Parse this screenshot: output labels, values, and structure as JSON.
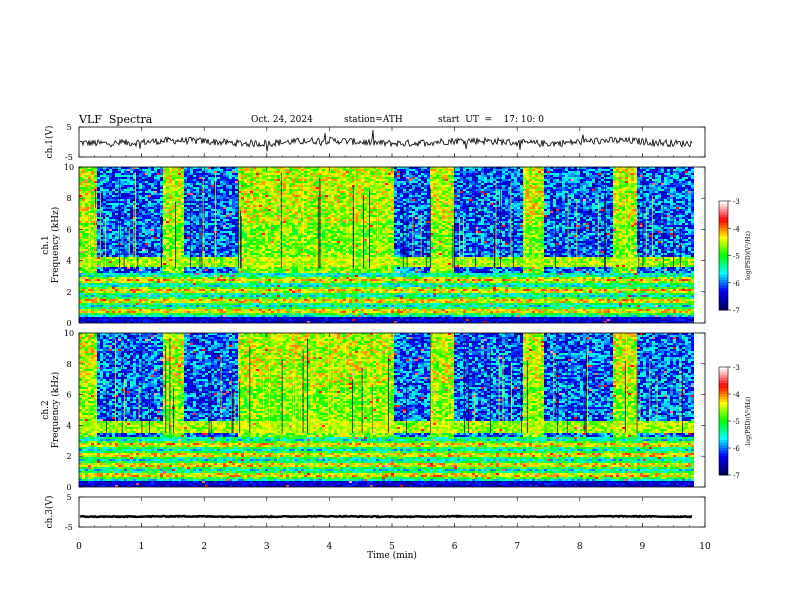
{
  "header": {
    "title": "VLF  Spectra",
    "date": "Oct. 24, 2024",
    "station": "station=ATH",
    "start": "start  UT  =    17: 10: 0"
  },
  "chart_data": [
    {
      "type": "line",
      "panel": "ch1-waveform",
      "ylabel": "ch.1(V)",
      "yticks": [
        "5",
        "-5"
      ],
      "ylim": [
        -5,
        5
      ],
      "xlim": [
        0,
        10
      ],
      "series": [
        {
          "mean": 0.0,
          "noise_amplitude": 1.2,
          "spikes": true
        }
      ]
    },
    {
      "type": "heatmap",
      "panel": "ch1-spectrogram",
      "ylabel": [
        "ch.1",
        "Frequency  (kHz)"
      ],
      "yticks": [
        "0",
        "2",
        "4",
        "6",
        "8",
        "10"
      ],
      "ylim": [
        0,
        10
      ],
      "xlim": [
        0,
        10
      ],
      "colorbar": {
        "label": "log(PSD)(V²/Hz)",
        "ticks": [
          "-3",
          "-4",
          "-5",
          "-6",
          "-7"
        ],
        "range": [
          -7,
          -3
        ]
      },
      "quiet_intervals_min": [
        [
          0.25,
          1.3
        ],
        [
          1.65,
          2.5
        ],
        [
          5.0,
          5.6
        ],
        [
          5.95,
          7.05
        ],
        [
          7.4,
          8.5
        ],
        [
          8.9,
          9.8
        ]
      ],
      "lower_band_khz": [
        0,
        3.3
      ],
      "upper_band_khz": [
        3.3,
        10
      ]
    },
    {
      "type": "heatmap",
      "panel": "ch2-spectrogram",
      "ylabel": [
        "ch.2",
        "Frequency  (kHz)"
      ],
      "yticks": [
        "0",
        "2",
        "4",
        "6",
        "8",
        "10"
      ],
      "ylim": [
        0,
        10
      ],
      "xlim": [
        0,
        10
      ],
      "colorbar": {
        "label": "log(PSD)(V²/Hz)",
        "ticks": [
          "-3",
          "-4",
          "-5",
          "-6",
          "-7"
        ],
        "range": [
          -7,
          -3
        ]
      },
      "quiet_intervals_min": [
        [
          0.25,
          1.3
        ],
        [
          1.65,
          2.5
        ],
        [
          5.0,
          5.6
        ],
        [
          5.95,
          7.05
        ],
        [
          7.4,
          8.5
        ],
        [
          8.9,
          9.8
        ]
      ],
      "lower_band_khz": [
        0,
        3.3
      ],
      "upper_band_khz": [
        3.3,
        10
      ]
    },
    {
      "type": "line",
      "panel": "ch3-waveform",
      "ylabel": "ch.3(V)",
      "yticks": [
        "5",
        "-5"
      ],
      "ylim": [
        -5,
        5
      ],
      "xlim": [
        0,
        10
      ],
      "series": [
        {
          "mean": -1.5,
          "noise_amplitude": 0.15,
          "spikes": false
        }
      ]
    }
  ],
  "xaxis": {
    "label": "Time  (min)",
    "ticks": [
      "0",
      "1",
      "2",
      "3",
      "4",
      "5",
      "6",
      "7",
      "8",
      "9",
      "10"
    ],
    "range": [
      0,
      10
    ],
    "data_end_min": 9.8
  },
  "colors": {
    "frame": "#000000",
    "trace": "#000000",
    "colormap": [
      "#000060",
      "#0000ff",
      "#00ffff",
      "#00ff00",
      "#ffff00",
      "#ff0000",
      "#ffffff"
    ]
  }
}
